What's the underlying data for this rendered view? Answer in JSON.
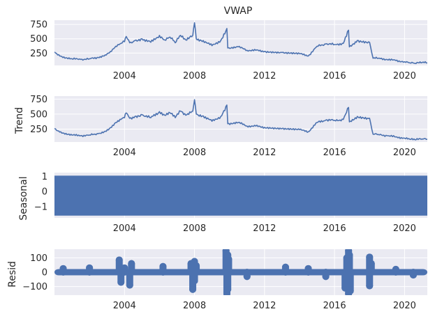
{
  "chart_data": [
    {
      "type": "line",
      "title": "VWAP",
      "ylabel": "",
      "x_tick_labels": [
        "2004",
        "2008",
        "2012",
        "2016",
        "2020"
      ],
      "x_ticks": [
        2004,
        2008,
        2012,
        2016,
        2020
      ],
      "xlim": [
        2000.0,
        2021.3
      ],
      "y_ticks": [
        250,
        500,
        750
      ],
      "y_tick_labels": [
        "250",
        "500",
        "750"
      ],
      "ylim": [
        35,
        825
      ],
      "grid": true,
      "color": "#4c72b0",
      "x": [
        2000.0,
        2000.3,
        2000.6,
        2001.0,
        2001.5,
        2002.0,
        2002.5,
        2002.9,
        2003.2,
        2003.5,
        2003.8,
        2004.0,
        2004.1,
        2004.3,
        2004.6,
        2005.0,
        2005.5,
        2006.0,
        2006.3,
        2006.6,
        2006.9,
        2007.2,
        2007.5,
        2007.9,
        2008.0,
        2008.1,
        2008.5,
        2009.0,
        2009.5,
        2009.85,
        2009.9,
        2010.5,
        2011.0,
        2011.5,
        2012.0,
        2013.0,
        2014.0,
        2014.5,
        2015.0,
        2015.5,
        2016.0,
        2016.5,
        2016.8,
        2016.85,
        2017.3,
        2018.0,
        2018.2,
        2018.5,
        2019.0,
        2019.5,
        2020.0,
        2020.3,
        2020.6,
        2021.0,
        2021.3
      ],
      "y": [
        270,
        200,
        160,
        150,
        140,
        150,
        175,
        220,
        280,
        370,
        420,
        450,
        540,
        430,
        470,
        500,
        440,
        560,
        480,
        530,
        430,
        560,
        480,
        560,
        780,
        500,
        470,
        380,
        470,
        680,
        340,
        360,
        300,
        300,
        280,
        260,
        240,
        200,
        370,
        410,
        400,
        420,
        650,
        360,
        470,
        440,
        160,
        160,
        140,
        120,
        100,
        80,
        70,
        85,
        80
      ]
    },
    {
      "type": "line",
      "title": "",
      "ylabel": "Trend",
      "x_tick_labels": [
        "2004",
        "2008",
        "2012",
        "2016",
        "2020"
      ],
      "x_ticks": [
        2004,
        2008,
        2012,
        2016,
        2020
      ],
      "xlim": [
        2000.0,
        2021.3
      ],
      "y_ticks": [
        250,
        500,
        750
      ],
      "y_tick_labels": [
        "250",
        "500",
        "750"
      ],
      "ylim": [
        35,
        800
      ],
      "grid": true,
      "color": "#4c72b0",
      "x": [
        2000.0,
        2000.3,
        2000.6,
        2001.0,
        2001.5,
        2002.0,
        2002.5,
        2002.9,
        2003.2,
        2003.5,
        2003.8,
        2004.0,
        2004.1,
        2004.3,
        2004.6,
        2005.0,
        2005.5,
        2006.0,
        2006.3,
        2006.6,
        2006.9,
        2007.2,
        2007.5,
        2007.9,
        2008.0,
        2008.1,
        2008.5,
        2009.0,
        2009.5,
        2009.85,
        2009.9,
        2010.5,
        2011.0,
        2011.5,
        2012.0,
        2013.0,
        2014.0,
        2014.5,
        2015.0,
        2015.5,
        2016.0,
        2016.5,
        2016.8,
        2016.85,
        2017.3,
        2018.0,
        2018.2,
        2018.5,
        2019.0,
        2019.5,
        2020.0,
        2020.3,
        2020.6,
        2021.0,
        2021.3
      ],
      "y": [
        260,
        200,
        165,
        150,
        140,
        150,
        175,
        215,
        275,
        360,
        410,
        440,
        520,
        430,
        460,
        490,
        440,
        540,
        480,
        520,
        440,
        550,
        480,
        550,
        740,
        500,
        470,
        380,
        460,
        650,
        340,
        360,
        300,
        300,
        280,
        260,
        240,
        205,
        360,
        400,
        395,
        410,
        610,
        370,
        460,
        430,
        165,
        160,
        140,
        120,
        100,
        80,
        72,
        85,
        80
      ]
    },
    {
      "type": "area",
      "title": "",
      "ylabel": "Seasonal",
      "x_tick_labels": [
        "2004",
        "2008",
        "2012",
        "2016",
        "2020"
      ],
      "x_ticks": [
        2004,
        2008,
        2012,
        2016,
        2020
      ],
      "xlim": [
        2000.0,
        2021.3
      ],
      "y_ticks": [
        -1,
        0,
        1
      ],
      "y_tick_labels": [
        "−1",
        "0",
        "1"
      ],
      "ylim": [
        -1.75,
        1.25
      ],
      "band": [
        -1.6,
        1.05
      ],
      "grid": true,
      "color": "#4c72b0"
    },
    {
      "type": "scatter",
      "title": "",
      "ylabel": "Resid",
      "x_tick_labels": [
        "2004",
        "2008",
        "2012",
        "2016",
        "2020"
      ],
      "x_ticks": [
        2004,
        2008,
        2012,
        2016,
        2020
      ],
      "xlim": [
        2000.0,
        2021.3
      ],
      "y_ticks": [
        -100,
        0,
        100
      ],
      "y_tick_labels": [
        "−100",
        "0",
        "100"
      ],
      "ylim": [
        -160,
        160
      ],
      "grid": true,
      "color": "#4c72b0",
      "baseline_band": [
        -22,
        22
      ],
      "x": [
        2003.7,
        2003.8,
        2004.0,
        2004.3,
        2004.4,
        2006.2,
        2007.8,
        2007.9,
        2008.0,
        2008.0,
        2008.1,
        2009.8,
        2009.85,
        2009.9,
        2009.9,
        2009.95,
        2013.2,
        2016.6,
        2016.7,
        2016.8,
        2016.8,
        2016.85,
        2016.9,
        2018.0,
        2018.0,
        2018.1,
        2000.5,
        2002.0,
        2011.0,
        2014.5,
        2015.5,
        2019.5,
        2020.5
      ],
      "y": [
        85,
        -70,
        30,
        -90,
        60,
        40,
        60,
        -120,
        75,
        -60,
        45,
        150,
        -150,
        120,
        -120,
        90,
        35,
        -110,
        100,
        150,
        -150,
        120,
        -130,
        105,
        -95,
        60,
        25,
        30,
        -30,
        25,
        -30,
        20,
        -20
      ]
    }
  ]
}
